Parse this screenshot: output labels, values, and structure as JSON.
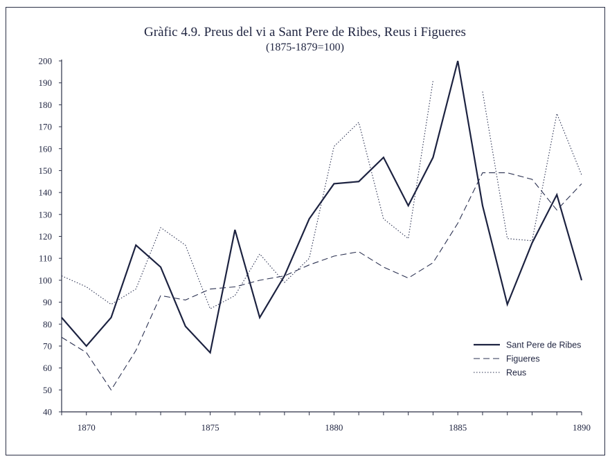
{
  "chart_data": {
    "type": "line",
    "title": "Gràfic 4.9. Preus del vi a Sant Pere de Ribes, Reus i Figueres",
    "subtitle": "(1875-1879=100)",
    "xlabel": "",
    "ylabel": "",
    "xlim": [
      1869,
      1890
    ],
    "ylim": [
      40,
      200
    ],
    "xticks": [
      1870,
      1875,
      1880,
      1885,
      1890
    ],
    "yticks": [
      40,
      50,
      60,
      70,
      80,
      90,
      100,
      110,
      120,
      130,
      140,
      150,
      160,
      170,
      180,
      190,
      200
    ],
    "grid": false,
    "legend_position": "bottom-right",
    "x": [
      1869,
      1870,
      1871,
      1872,
      1873,
      1874,
      1875,
      1876,
      1877,
      1878,
      1879,
      1880,
      1881,
      1882,
      1883,
      1884,
      1885,
      1886,
      1887,
      1888,
      1889,
      1890
    ],
    "series": [
      {
        "name": "Sant Pere de Ribes",
        "style": "solid",
        "color": "#1c2240",
        "values": [
          83,
          70,
          83,
          116,
          106,
          79,
          67,
          123,
          83,
          102,
          128,
          144,
          145,
          156,
          134,
          156,
          200,
          134,
          89,
          117,
          139,
          100
        ]
      },
      {
        "name": "Figueres",
        "style": "dashed",
        "color": "#2a3050",
        "values": [
          74,
          67,
          50,
          68,
          93,
          91,
          96,
          97,
          100,
          102,
          107,
          111,
          113,
          106,
          101,
          108,
          126,
          149,
          149,
          146,
          132,
          144
        ]
      },
      {
        "name": "Reus",
        "style": "dotted",
        "color": "#2a3050",
        "values": [
          102,
          97,
          89,
          96,
          124,
          116,
          87,
          93,
          112,
          99,
          110,
          161,
          172,
          128,
          119,
          191,
          null,
          186,
          119,
          118,
          176,
          148
        ]
      }
    ]
  }
}
